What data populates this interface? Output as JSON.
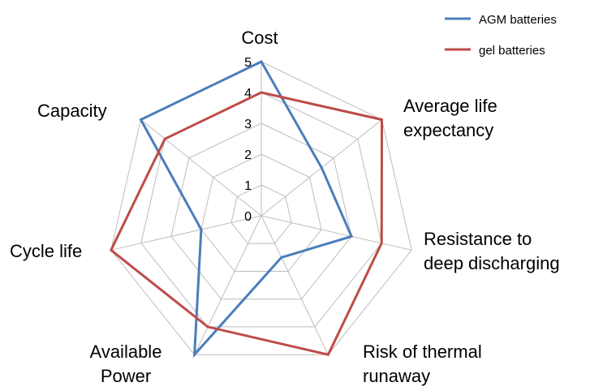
{
  "chart_data": {
    "type": "radar",
    "title": "",
    "categories": [
      "Cost",
      "Average life expectancy",
      "Resistance to deep discharging",
      "Risk of thermal runaway",
      "Available Power",
      "Cycle life",
      "Capacity"
    ],
    "category_lines": [
      [
        "Cost"
      ],
      [
        "Average life",
        "expectancy"
      ],
      [
        "Resistance to",
        "deep discharging"
      ],
      [
        "Risk of thermal",
        "runaway"
      ],
      [
        "Available",
        "Power"
      ],
      [
        "Cycle life"
      ],
      [
        "Capacity"
      ]
    ],
    "ticks": [
      "0",
      "1",
      "2",
      "3",
      "4",
      "5"
    ],
    "rmax": 5,
    "series": [
      {
        "name": "AGM batteries",
        "color": "#4a7ebb",
        "values": [
          5,
          2.5,
          3,
          1.5,
          5,
          2,
          5
        ]
      },
      {
        "name": "gel batteries",
        "color": "#be4b48",
        "values": [
          4,
          5,
          4,
          5,
          4,
          5,
          4
        ]
      }
    ],
    "legend_position": "top-right",
    "grid": true
  }
}
